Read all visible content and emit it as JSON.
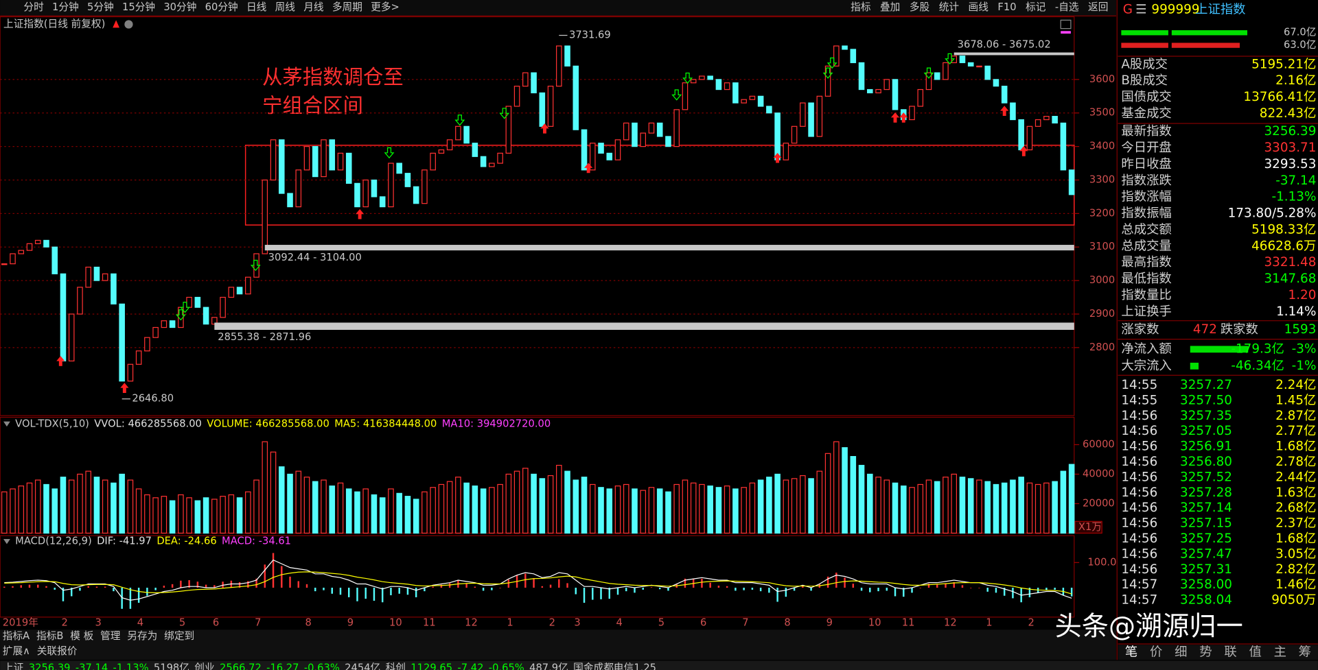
{
  "toolbar": {
    "left": [
      "分时",
      "1分钟",
      "5分钟",
      "15分钟",
      "30分钟",
      "60分钟",
      "日线",
      "周线",
      "月线",
      "多周期",
      "更多>"
    ],
    "right": [
      "指标",
      "叠加",
      "多股",
      "统计",
      "画线",
      "F10",
      "标记",
      "-自选",
      "返回"
    ]
  },
  "chart_data": [
    {
      "type": "candlestick",
      "title": "上证指数(日线 前复权)",
      "up_color": "#ff3232",
      "down_color": "#54fcfc",
      "grid": true,
      "categories": [
        "2019年",
        null,
        null,
        null,
        null,
        null,
        null,
        "2",
        null,
        null,
        null,
        "3",
        null,
        null,
        null,
        null,
        "4",
        null,
        null,
        null,
        null,
        "5",
        null,
        null,
        null,
        "6",
        null,
        null,
        null,
        null,
        "7",
        null,
        null,
        null,
        null,
        null,
        "8",
        null,
        null,
        null,
        null,
        "9",
        null,
        null,
        null,
        null,
        "10",
        null,
        null,
        null,
        "11",
        null,
        null,
        null,
        null,
        "12",
        null,
        null,
        null,
        null,
        "1",
        null,
        null,
        null,
        null,
        "2",
        null,
        null,
        "3",
        null,
        null,
        null,
        null,
        "4",
        null,
        null,
        null,
        null,
        "5",
        null,
        null,
        null,
        null,
        "6",
        null,
        null,
        null,
        null,
        "7",
        null,
        null,
        null,
        null,
        "8",
        null,
        null,
        null,
        null,
        "9",
        null,
        null,
        null,
        null,
        "10",
        null,
        null,
        null,
        "11",
        null,
        null,
        null,
        null,
        "12",
        null,
        null,
        null,
        null,
        "1",
        null,
        null,
        null,
        null,
        "2",
        null,
        null,
        null,
        null,
        null
      ],
      "close": [
        3050,
        3080,
        3090,
        3110,
        3120,
        3100,
        3020,
        2760,
        2900,
        2980,
        3040,
        3000,
        3020,
        2930,
        2700,
        2750,
        2790,
        2830,
        2860,
        2880,
        2860,
        2920,
        2950,
        2920,
        2870,
        2890,
        2950,
        2980,
        2960,
        3010,
        3080,
        3300,
        3420,
        3260,
        3220,
        3330,
        3400,
        3310,
        3420,
        3330,
        3380,
        3290,
        3220,
        3300,
        3250,
        3220,
        3350,
        3320,
        3280,
        3230,
        3330,
        3380,
        3390,
        3420,
        3460,
        3410,
        3370,
        3340,
        3350,
        3380,
        3520,
        3580,
        3620,
        3560,
        3460,
        3580,
        3700,
        3640,
        3450,
        3330,
        3410,
        3380,
        3360,
        3420,
        3470,
        3400,
        3440,
        3470,
        3430,
        3400,
        3510,
        3590,
        3600,
        3610,
        3600,
        3570,
        3590,
        3530,
        3540,
        3550,
        3520,
        3500,
        3360,
        3410,
        3460,
        3530,
        3430,
        3550,
        3640,
        3700,
        3690,
        3650,
        3570,
        3560,
        3570,
        3600,
        3510,
        3480,
        3520,
        3570,
        3620,
        3600,
        3650,
        3670,
        3650,
        3640,
        3640,
        3600,
        3580,
        3530,
        3480,
        3390,
        3460,
        3480,
        3490,
        3470,
        3330,
        3256.39
      ],
      "ylim": [
        2597,
        3782
      ],
      "yticks": [
        2800,
        2900,
        3000,
        3100,
        3200,
        3300,
        3400,
        3500,
        3600
      ],
      "annotations": [
        {
          "label": "3731.69",
          "value": 3731.69,
          "index": 66
        },
        {
          "label": "2646.80",
          "value": 2646.8,
          "index": 14
        }
      ],
      "bands": [
        {
          "label": "3678.06 - 3675.02",
          "low": 3675.02,
          "high": 3678.06,
          "start": 113
        },
        {
          "label": "3092.44 - 3104.00",
          "low": 3092.44,
          "high": 3104,
          "start": 31
        },
        {
          "label": "2855.38 - 2871.96",
          "low": 2855.38,
          "high": 2871.96,
          "start": 25
        }
      ]
    },
    {
      "type": "bar",
      "unit_label": "X1万",
      "header": [
        {
          "text": "VOL-TDX(5,10)",
          "color": "#c8c8c8"
        },
        {
          "text": "VVOL: 466285568.00",
          "color": "#e0e0e0"
        },
        {
          "text": "VOLUME: 466285568.00",
          "color": "#ffff00"
        },
        {
          "text": "MA5: 416384448.00",
          "color": "#ffff00"
        },
        {
          "text": "MA10: 394902720.00",
          "color": "#ff40ff"
        }
      ],
      "values": [
        28000,
        30000,
        32000,
        34000,
        36000,
        33000,
        30000,
        38000,
        36000,
        40000,
        42000,
        38000,
        36000,
        34000,
        40000,
        36000,
        30000,
        26000,
        24000,
        25000,
        22000,
        26000,
        24000,
        22000,
        24000,
        23000,
        25000,
        26000,
        24000,
        28000,
        36000,
        62000,
        55000,
        45000,
        40000,
        42000,
        38000,
        35000,
        36000,
        32000,
        34000,
        30000,
        28000,
        30000,
        26000,
        24000,
        30000,
        27000,
        25000,
        23000,
        28000,
        31000,
        33000,
        35000,
        38000,
        34000,
        32000,
        30000,
        31000,
        33000,
        40000,
        42000,
        44000,
        40000,
        37000,
        39000,
        46000,
        42000,
        36000,
        38000,
        33000,
        31000,
        30000,
        32000,
        33000,
        30000,
        29000,
        31000,
        30000,
        28000,
        33000,
        36000,
        34000,
        33000,
        32000,
        31000,
        32000,
        30000,
        31000,
        34000,
        36000,
        38000,
        40000,
        36000,
        37000,
        39000,
        37000,
        42000,
        54000,
        62000,
        58000,
        52000,
        46000,
        40000,
        38000,
        36000,
        34000,
        32000,
        31000,
        33000,
        36000,
        35000,
        38000,
        40000,
        38000,
        37000,
        36000,
        35000,
        33000,
        34000,
        36000,
        38000,
        34000,
        33000,
        34000,
        35000,
        42000,
        46628
      ],
      "ylim": [
        0,
        78000
      ],
      "yticks": [
        20000,
        40000,
        60000
      ]
    },
    {
      "type": "macd",
      "dif_color": "#ffffff",
      "dea_color": "#ffff00",
      "header": [
        {
          "text": "MACD(12,26,9)",
          "color": "#c8c8c8"
        },
        {
          "text": "DIF: -41.97",
          "color": "#e0e0e0"
        },
        {
          "text": "DEA: -24.66",
          "color": "#ffff00"
        },
        {
          "text": "MACD: -34.61",
          "color": "#ff40ff"
        }
      ],
      "dif": [
        20,
        22,
        25,
        28,
        30,
        28,
        20,
        -10,
        -5,
        5,
        15,
        15,
        15,
        5,
        -40,
        -50,
        -45,
        -35,
        -25,
        -15,
        -10,
        0,
        5,
        5,
        0,
        0,
        10,
        15,
        15,
        20,
        30,
        70,
        110,
        95,
        80,
        75,
        70,
        55,
        55,
        45,
        40,
        30,
        15,
        15,
        5,
        -5,
        5,
        5,
        0,
        -10,
        0,
        10,
        15,
        20,
        30,
        25,
        20,
        10,
        10,
        15,
        35,
        50,
        60,
        55,
        40,
        45,
        60,
        55,
        30,
        5,
        5,
        0,
        -5,
        0,
        5,
        0,
        5,
        10,
        5,
        0,
        15,
        30,
        35,
        40,
        35,
        30,
        30,
        20,
        20,
        20,
        15,
        10,
        -15,
        -10,
        0,
        10,
        0,
        15,
        35,
        50,
        45,
        35,
        20,
        15,
        15,
        15,
        0,
        -5,
        0,
        10,
        20,
        20,
        25,
        30,
        25,
        20,
        20,
        10,
        5,
        -5,
        -15,
        -30,
        -25,
        -20,
        -15,
        -15,
        -30,
        -41.97
      ],
      "dea": [
        18,
        19,
        20,
        22,
        24,
        25,
        24,
        17,
        12,
        11,
        12,
        13,
        13,
        12,
        2,
        -8,
        -15,
        -19,
        -20,
        -19,
        -17,
        -14,
        -10,
        -7,
        -6,
        -5,
        -2,
        1,
        4,
        7,
        12,
        24,
        41,
        52,
        58,
        62,
        63,
        62,
        60,
        57,
        54,
        49,
        42,
        37,
        31,
        24,
        20,
        17,
        14,
        9,
        7,
        8,
        9,
        11,
        15,
        17,
        18,
        16,
        15,
        15,
        19,
        25,
        32,
        36,
        37,
        39,
        43,
        46,
        43,
        35,
        29,
        23,
        17,
        14,
        12,
        10,
        9,
        9,
        8,
        6,
        8,
        12,
        17,
        22,
        25,
        26,
        27,
        26,
        25,
        24,
        22,
        20,
        13,
        8,
        6,
        7,
        6,
        8,
        13,
        20,
        25,
        27,
        26,
        24,
        22,
        21,
        17,
        13,
        10,
        10,
        12,
        14,
        16,
        19,
        20,
        20,
        20,
        18,
        15,
        11,
        6,
        -1,
        -6,
        -9,
        -10,
        -11,
        -15,
        -24.66
      ],
      "macd": [
        4,
        6,
        10,
        12,
        12,
        6,
        -8,
        -54,
        -34,
        -12,
        6,
        4,
        4,
        -14,
        -84,
        -84,
        -60,
        -32,
        -10,
        8,
        14,
        28,
        30,
        24,
        12,
        10,
        24,
        28,
        22,
        26,
        36,
        92,
        138,
        86,
        44,
        26,
        14,
        -14,
        -10,
        -24,
        -28,
        -38,
        -54,
        -44,
        -52,
        -58,
        -30,
        -24,
        -28,
        -38,
        -14,
        4,
        12,
        18,
        30,
        16,
        4,
        -12,
        -10,
        0,
        32,
        50,
        56,
        38,
        6,
        12,
        34,
        18,
        -26,
        -60,
        -48,
        -46,
        -44,
        -28,
        -14,
        -20,
        -8,
        2,
        -6,
        -12,
        14,
        36,
        36,
        36,
        20,
        8,
        6,
        -12,
        -10,
        -8,
        -14,
        -20,
        -56,
        -36,
        -12,
        6,
        -12,
        14,
        44,
        60,
        40,
        16,
        -12,
        -18,
        -14,
        -12,
        -34,
        -36,
        -20,
        0,
        16,
        12,
        18,
        22,
        10,
        0,
        0,
        -16,
        -20,
        -32,
        -42,
        -58,
        -38,
        -22,
        -10,
        -8,
        -30,
        -34.61
      ],
      "ylim": [
        -117,
        207
      ],
      "yticks": [
        {
          "value": 100,
          "label": "100.0"
        }
      ]
    }
  ],
  "note": [
    "从茅指数调仓至",
    "宁组合区间"
  ],
  "watermark": "头条@溯源归一",
  "tabs": {
    "row1": [
      "指标A",
      "指标B",
      "模 板",
      "管理",
      "另存为",
      "绑定到"
    ],
    "row2": [
      "扩展∧",
      "关联报价"
    ]
  },
  "quote": {
    "prefix": "G",
    "menu": "☰",
    "code": "999999",
    "name": "上证指数",
    "bars": [
      "67.0亿",
      "63.0亿"
    ],
    "turnover": [
      {
        "label": "A股成交",
        "value": "5195.21亿",
        "color": "#ffff00"
      },
      {
        "label": "B股成交",
        "value": "2.16亿",
        "color": "#ffff00"
      },
      {
        "label": "国债成交",
        "value": "13766.41亿",
        "color": "#ffff00"
      },
      {
        "label": "基金成交",
        "value": "822.43亿",
        "color": "#ffff00"
      }
    ],
    "index": [
      {
        "label": "最新指数",
        "value": "3256.39",
        "color": "#00ff00"
      },
      {
        "label": "今日开盘",
        "value": "3303.71",
        "color": "#ff3232"
      },
      {
        "label": "昨日收盘",
        "value": "3293.53",
        "color": "#ffffff"
      },
      {
        "label": "指数涨跌",
        "value": "-37.14",
        "color": "#00ff00"
      },
      {
        "label": "指数涨幅",
        "value": "-1.13%",
        "color": "#00ff00"
      },
      {
        "label": "指数振幅",
        "value": "173.80/5.28%",
        "color": "#ffffff"
      },
      {
        "label": "总成交额",
        "value": "5198.33亿",
        "color": "#ffff00"
      },
      {
        "label": "总成交量",
        "value": "46628.6万",
        "color": "#ffff00"
      },
      {
        "label": "最高指数",
        "value": "3321.48",
        "color": "#ff3232"
      },
      {
        "label": "最低指数",
        "value": "3147.68",
        "color": "#00ff00"
      },
      {
        "label": "指数量比",
        "value": "1.20",
        "color": "#ff3232"
      },
      {
        "label": "上证换手",
        "value": "1.14%",
        "color": "#ffffff"
      }
    ],
    "breadth": {
      "up_label": "涨家数",
      "up": "472",
      "down_label": "跌家数",
      "down": "1593"
    },
    "flows": [
      {
        "label": "净流入额",
        "value": "-179.3亿",
        "pct": "-3%"
      },
      {
        "label": "大宗流入",
        "value": "-46.34亿",
        "pct": "-1%"
      }
    ],
    "ticks": [
      {
        "time": "14:55",
        "price": "3257.27",
        "amount": "2.24亿"
      },
      {
        "time": "14:55",
        "price": "3257.50",
        "amount": "1.45亿"
      },
      {
        "time": "14:56",
        "price": "3257.35",
        "amount": "2.87亿"
      },
      {
        "time": "14:56",
        "price": "3257.05",
        "amount": "2.77亿"
      },
      {
        "time": "14:56",
        "price": "3256.91",
        "amount": "1.68亿"
      },
      {
        "time": "14:56",
        "price": "3256.80",
        "amount": "2.78亿"
      },
      {
        "time": "14:56",
        "price": "3257.52",
        "amount": "2.44亿"
      },
      {
        "time": "14:56",
        "price": "3257.28",
        "amount": "1.63亿"
      },
      {
        "time": "14:56",
        "price": "3257.14",
        "amount": "2.68亿"
      },
      {
        "time": "14:56",
        "price": "3257.15",
        "amount": "2.37亿"
      },
      {
        "time": "14:56",
        "price": "3257.25",
        "amount": "1.68亿"
      },
      {
        "time": "14:56",
        "price": "3257.47",
        "amount": "3.05亿"
      },
      {
        "time": "14:56",
        "price": "3257.31",
        "amount": "2.82亿"
      },
      {
        "time": "14:57",
        "price": "3258.00",
        "amount": "1.46亿"
      },
      {
        "time": "14:57",
        "price": "3258.04",
        "amount": "9050万"
      }
    ],
    "tabs": [
      "笔",
      "价",
      "细",
      "势",
      "联",
      "值",
      "主",
      "筹"
    ]
  },
  "status": [
    {
      "text": "上证",
      "color": "#c8c8c8"
    },
    {
      "text": "3256.39",
      "color": "#00ff00"
    },
    {
      "text": "-37.14",
      "color": "#00ff00"
    },
    {
      "text": "-1.13%",
      "color": "#00ff00"
    },
    {
      "text": "5198亿",
      "color": "#c8c8c8"
    },
    {
      "text": "创业",
      "color": "#c8c8c8"
    },
    {
      "text": "2566.72",
      "color": "#00ff00"
    },
    {
      "text": "-16.27",
      "color": "#00ff00"
    },
    {
      "text": "-0.63%",
      "color": "#00ff00"
    },
    {
      "text": "2454亿",
      "color": "#c8c8c8"
    },
    {
      "text": "科创",
      "color": "#c8c8c8"
    },
    {
      "text": "1129.65",
      "color": "#00ff00"
    },
    {
      "text": "-7.42",
      "color": "#00ff00"
    },
    {
      "text": "-0.65%",
      "color": "#00ff00"
    },
    {
      "text": "487.9亿",
      "color": "#c8c8c8"
    },
    {
      "text": "国金成都电信1.25",
      "color": "#c8c8c8"
    }
  ]
}
